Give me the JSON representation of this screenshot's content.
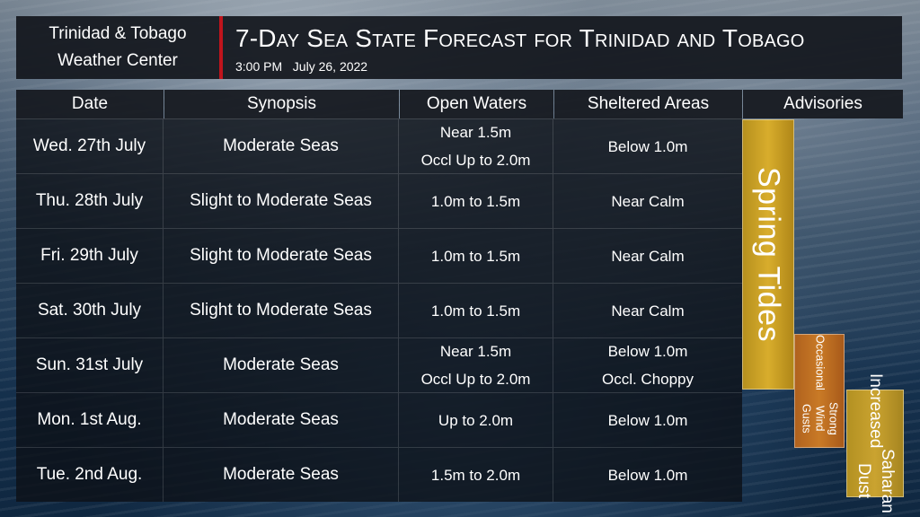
{
  "header": {
    "org_line1": "Trinidad & Tobago",
    "org_line2": "Weather Center",
    "title": "7-Day Sea State Forecast for Trinidad and Tobago",
    "subtitle": "3:00 PM   July 26, 2022"
  },
  "table": {
    "columns": [
      "Date",
      "Synopsis",
      "Open Waters",
      "Sheltered Areas",
      "Advisories"
    ],
    "rows": [
      {
        "date": "Wed. 27th July",
        "synopsis": "Moderate Seas",
        "open1": "Near 1.5m",
        "open2": "Occl Up to 2.0m",
        "shel1": "Below 1.0m",
        "shel2": ""
      },
      {
        "date": "Thu. 28th July",
        "synopsis": "Slight to Moderate Seas",
        "open1": "1.0m to 1.5m",
        "open2": "",
        "shel1": "Near Calm",
        "shel2": ""
      },
      {
        "date": "Fri. 29th July",
        "synopsis": "Slight to Moderate Seas",
        "open1": "1.0m to 1.5m",
        "open2": "",
        "shel1": "Near Calm",
        "shel2": ""
      },
      {
        "date": "Sat. 30th July",
        "synopsis": "Slight to Moderate Seas",
        "open1": "1.0m to 1.5m",
        "open2": "",
        "shel1": "Near Calm",
        "shel2": ""
      },
      {
        "date": "Sun. 31st July",
        "synopsis": "Moderate Seas",
        "open1": "Near 1.5m",
        "open2": "Occl Up to 2.0m",
        "shel1": "Below 1.0m",
        "shel2": "Occl. Choppy"
      },
      {
        "date": "Mon. 1st Aug.",
        "synopsis": "Moderate Seas",
        "open1": "Up to 2.0m",
        "open2": "",
        "shel1": "Below 1.0m",
        "shel2": ""
      },
      {
        "date": "Tue. 2nd Aug.",
        "synopsis": "Moderate Seas",
        "open1": "1.5m to 2.0m",
        "open2": "",
        "shel1": "Below 1.0m",
        "shel2": ""
      }
    ]
  },
  "advisories": {
    "spring_tides": "Spring Tides",
    "gusts_line1": "Occasional",
    "gusts_line2": "Strong Wind Gusts",
    "dust_line1": "Increased",
    "dust_line2": "Saharan Dust"
  },
  "colors": {
    "accent_red": "#c0141c",
    "spring_tides": "#d2a52a",
    "wind_gusts": "#c47626",
    "saharan_dust": "#c4a02e"
  }
}
